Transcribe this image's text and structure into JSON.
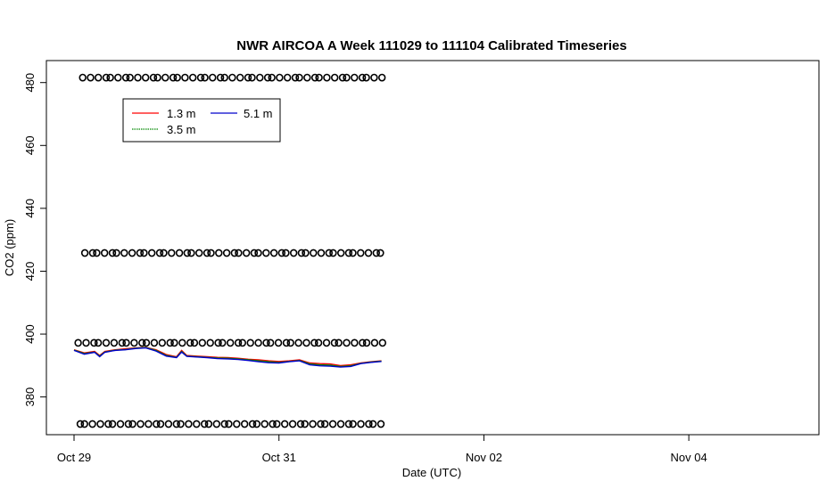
{
  "chart_data": {
    "type": "scatter",
    "title": "NWR AIRCOA A  Week 111029 to 111104  Calibrated Timeseries",
    "xlabel": "Date (UTC)",
    "ylabel": "CO2 (ppm)",
    "x_tick_labels": [
      "Oct 29",
      "Oct 31",
      "Nov 02",
      "Nov 04"
    ],
    "x_ticks_days": [
      0,
      2,
      4,
      6
    ],
    "xlim_days": [
      -0.27,
      7.27
    ],
    "y_ticks": [
      380,
      400,
      420,
      440,
      460,
      480
    ],
    "ylim": [
      368,
      487
    ],
    "grid": false,
    "legend": {
      "placement": "top-left",
      "entries": [
        "1.3 m",
        "5.1 m",
        "3.5 m"
      ]
    },
    "reference_levels": [
      {
        "y": 481.6,
        "marker": "circle",
        "x_range_days": [
          0.1,
          3.0
        ]
      },
      {
        "y": 425.8,
        "marker": "circle",
        "x_range_days": [
          0.1,
          3.0
        ]
      },
      {
        "y": 397.2,
        "marker": "circle",
        "x_range_days": [
          0.05,
          3.0
        ]
      },
      {
        "y": 371.4,
        "marker": "circle",
        "x_range_days": [
          0.05,
          3.0
        ]
      }
    ],
    "series": [
      {
        "name": "1.3 m",
        "color": "#ff0000",
        "x_days": [
          0.0,
          0.1,
          0.2,
          0.25,
          0.3,
          0.4,
          0.5,
          0.6,
          0.7,
          0.8,
          0.9,
          1.0,
          1.05,
          1.1,
          1.2,
          1.3,
          1.4,
          1.5,
          1.6,
          1.7,
          1.8,
          1.9,
          2.0,
          2.1,
          2.2,
          2.3,
          2.4,
          2.5,
          2.6,
          2.7,
          2.8,
          2.9,
          3.0
        ],
        "values": [
          395.0,
          394.0,
          394.5,
          393.2,
          394.5,
          395.0,
          395.3,
          395.6,
          395.8,
          395.0,
          393.5,
          392.8,
          394.8,
          393.2,
          393.0,
          392.8,
          392.6,
          392.5,
          392.3,
          392.0,
          391.8,
          391.5,
          391.3,
          391.5,
          391.8,
          390.8,
          390.6,
          390.5,
          390.0,
          390.2,
          390.8,
          391.2,
          391.5
        ]
      },
      {
        "name": "5.1 m",
        "color": "#0000cc",
        "x_days": [
          0.0,
          0.1,
          0.2,
          0.25,
          0.3,
          0.4,
          0.5,
          0.6,
          0.7,
          0.8,
          0.9,
          1.0,
          1.05,
          1.1,
          1.2,
          1.3,
          1.4,
          1.5,
          1.6,
          1.7,
          1.8,
          1.9,
          2.0,
          2.1,
          2.2,
          2.3,
          2.4,
          2.5,
          2.6,
          2.7,
          2.8,
          2.9,
          3.0
        ],
        "values": [
          394.8,
          393.6,
          394.2,
          392.8,
          394.2,
          394.8,
          395.0,
          395.4,
          395.6,
          394.6,
          393.0,
          392.5,
          394.3,
          392.9,
          392.7,
          392.5,
          392.2,
          392.1,
          391.9,
          391.6,
          391.2,
          390.9,
          390.8,
          391.2,
          391.5,
          390.2,
          389.9,
          389.8,
          389.5,
          389.7,
          390.6,
          391.0,
          391.3
        ]
      },
      {
        "name": "3.5 m",
        "color": "#008800",
        "x_days": [
          0.0,
          0.1,
          0.2,
          0.25,
          0.3,
          0.4,
          0.5,
          0.6,
          0.7,
          0.8,
          0.9,
          1.0,
          1.05,
          1.1,
          1.2,
          1.3,
          1.4,
          1.5,
          1.6,
          1.7,
          1.8,
          1.9,
          2.0,
          2.1,
          2.2,
          2.3,
          2.4,
          2.5,
          2.6,
          2.7,
          2.8,
          2.9,
          3.0
        ],
        "values": [
          394.9,
          393.8,
          394.3,
          393.0,
          394.3,
          394.9,
          395.1,
          395.5,
          395.7,
          394.8,
          393.2,
          392.6,
          394.5,
          393.0,
          392.8,
          392.6,
          392.4,
          392.3,
          392.1,
          391.8,
          391.5,
          391.2,
          391.0,
          391.3,
          391.6,
          390.5,
          390.2,
          390.1,
          389.7,
          389.9,
          390.7,
          391.1,
          391.4
        ]
      }
    ]
  }
}
